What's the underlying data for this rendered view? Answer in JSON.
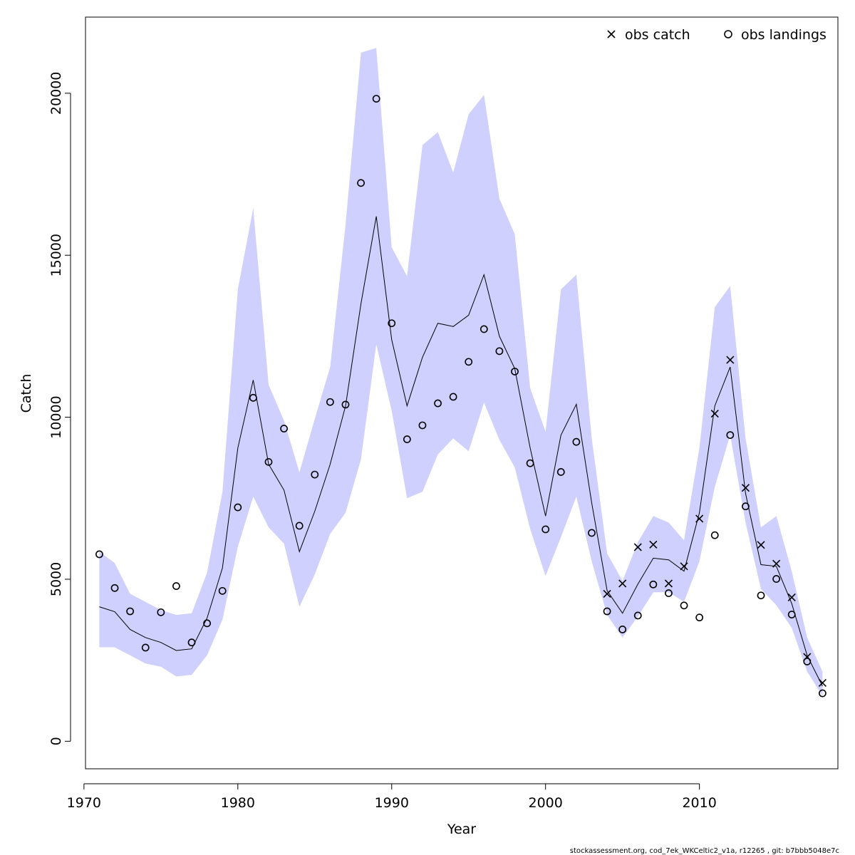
{
  "chart_data": {
    "type": "line",
    "title": "",
    "xlabel": "Year",
    "ylabel": "Catch",
    "xlim": [
      1970.1,
      2019.0
    ],
    "ylim": [
      -850,
      22350
    ],
    "x_ticks": [
      1970,
      1980,
      1990,
      2000,
      2010
    ],
    "y_ticks": [
      0,
      5000,
      10000,
      15000,
      20000
    ],
    "band_color": "#d0d0ff",
    "line_color": "#000000",
    "legend_position": "top-right",
    "legend": [
      {
        "symbol": "cross",
        "label": "obs catch"
      },
      {
        "symbol": "circle",
        "label": "obs landings"
      }
    ],
    "years": [
      1971,
      1972,
      1973,
      1974,
      1975,
      1976,
      1977,
      1978,
      1979,
      1980,
      1981,
      1982,
      1983,
      1984,
      1985,
      1986,
      1987,
      1988,
      1989,
      1990,
      1991,
      1992,
      1993,
      1994,
      1995,
      1996,
      1997,
      1998,
      1999,
      2000,
      2001,
      2002,
      2003,
      2004,
      2005,
      2006,
      2007,
      2008,
      2009,
      2010,
      2011,
      2012,
      2013,
      2014,
      2015,
      2016,
      2017,
      2018
    ],
    "series": [
      {
        "name": "",
        "values": [
          4150,
          4000,
          3450,
          3200,
          3050,
          2800,
          2850,
          3800,
          5350,
          9050,
          11150,
          8550,
          7750,
          5850,
          7100,
          8550,
          10350,
          13500,
          16200,
          12400,
          10350,
          11850,
          12900,
          12800,
          13150,
          14400,
          12500,
          11500,
          9050,
          6950,
          9450,
          10400,
          7350,
          4650,
          3950,
          4850,
          5650,
          5600,
          5250,
          7050,
          10350,
          11550,
          7650,
          5450,
          5400,
          4250,
          2650,
          1700
        ]
      },
      {
        "name": "lower",
        "values": [
          2900,
          2900,
          2650,
          2400,
          2300,
          2000,
          2050,
          2650,
          3750,
          6000,
          7550,
          6600,
          6100,
          4150,
          5150,
          6400,
          7050,
          8700,
          12250,
          10200,
          7500,
          7700,
          8850,
          9350,
          8950,
          10450,
          9300,
          8450,
          6550,
          5100,
          6300,
          7550,
          5550,
          3900,
          3200,
          3850,
          4600,
          4600,
          4300,
          5550,
          7850,
          9450,
          6750,
          4700,
          4200,
          3500,
          2150,
          1400
        ]
      },
      {
        "name": "upper",
        "values": [
          5850,
          5500,
          4550,
          4300,
          4050,
          3900,
          3950,
          5200,
          7700,
          13950,
          16450,
          11000,
          9900,
          8300,
          9950,
          11550,
          15950,
          21250,
          21400,
          15250,
          14350,
          18400,
          18800,
          17550,
          19350,
          19950,
          16750,
          15650,
          10900,
          9550,
          13950,
          14400,
          9350,
          5800,
          4950,
          6150,
          6950,
          6750,
          6200,
          9050,
          13400,
          14050,
          9350,
          6600,
          6950,
          5250,
          3200,
          2150
        ]
      },
      {
        "name": "obs catch",
        "points": [
          [
            2004,
            4550
          ],
          [
            2005,
            4870
          ],
          [
            2006,
            5990
          ],
          [
            2007,
            6070
          ],
          [
            2008,
            4870
          ],
          [
            2009,
            5400
          ],
          [
            2010,
            6870
          ],
          [
            2011,
            10110
          ],
          [
            2012,
            11770
          ],
          [
            2013,
            7820
          ],
          [
            2014,
            6060
          ],
          [
            2015,
            5480
          ],
          [
            2016,
            4440
          ],
          [
            2017,
            2600
          ],
          [
            2018,
            1800
          ]
        ]
      },
      {
        "name": "obs landings",
        "points": [
          [
            1971,
            5770
          ],
          [
            1972,
            4730
          ],
          [
            1973,
            4010
          ],
          [
            1974,
            2890
          ],
          [
            1975,
            3980
          ],
          [
            1976,
            4790
          ],
          [
            1977,
            3050
          ],
          [
            1978,
            3640
          ],
          [
            1979,
            4640
          ],
          [
            1980,
            7220
          ],
          [
            1981,
            10600
          ],
          [
            1982,
            8620
          ],
          [
            1983,
            9650
          ],
          [
            1984,
            6650
          ],
          [
            1985,
            8230
          ],
          [
            1986,
            10470
          ],
          [
            1987,
            10390
          ],
          [
            1988,
            17230
          ],
          [
            1989,
            19830
          ],
          [
            1990,
            12900
          ],
          [
            1991,
            9320
          ],
          [
            1992,
            9750
          ],
          [
            1993,
            10430
          ],
          [
            1994,
            10630
          ],
          [
            1995,
            11710
          ],
          [
            1996,
            12720
          ],
          [
            1997,
            12040
          ],
          [
            1998,
            11410
          ],
          [
            1999,
            8580
          ],
          [
            2000,
            6540
          ],
          [
            2001,
            8310
          ],
          [
            2002,
            9240
          ],
          [
            2003,
            6430
          ],
          [
            2004,
            4010
          ],
          [
            2005,
            3450
          ],
          [
            2006,
            3880
          ],
          [
            2007,
            4840
          ],
          [
            2008,
            4570
          ],
          [
            2009,
            4190
          ],
          [
            2010,
            3820
          ],
          [
            2011,
            6360
          ],
          [
            2012,
            9450
          ],
          [
            2013,
            7250
          ],
          [
            2014,
            4500
          ],
          [
            2015,
            5010
          ],
          [
            2016,
            3910
          ],
          [
            2017,
            2460
          ],
          [
            2018,
            1480
          ]
        ]
      }
    ]
  },
  "footer": "stockassessment.org, cod_7ek_WKCeltic2_v1a, r12265 , git: b7bbb5048e7c"
}
